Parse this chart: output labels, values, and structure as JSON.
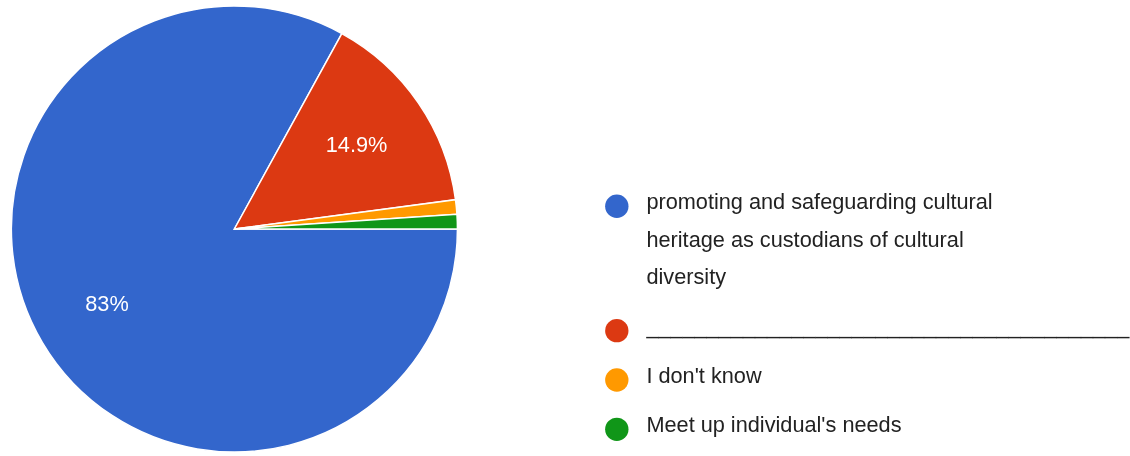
{
  "chart_data": {
    "type": "pie",
    "categories": [
      "promoting and safeguarding cultural heritage as custodians of cultural diversity",
      "________________________________________",
      "I don't know",
      "Meet up individual's needs"
    ],
    "values": [
      83,
      14.9,
      1.05,
      1.05
    ],
    "colors": [
      "#3366cc",
      "#dc3912",
      "#ff9900",
      "#109618"
    ],
    "value_labels": [
      "83%",
      "14.9%",
      null,
      null
    ],
    "legend": "right"
  }
}
